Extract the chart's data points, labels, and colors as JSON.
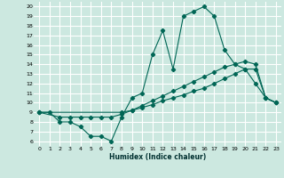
{
  "xlabel": "Humidex (Indice chaleur)",
  "xlim": [
    -0.5,
    23.5
  ],
  "ylim": [
    5.5,
    20.5
  ],
  "xticks": [
    0,
    1,
    2,
    3,
    4,
    5,
    6,
    7,
    8,
    9,
    10,
    11,
    12,
    13,
    14,
    15,
    16,
    17,
    18,
    19,
    20,
    21,
    22,
    23
  ],
  "yticks": [
    6,
    7,
    8,
    9,
    10,
    11,
    12,
    13,
    14,
    15,
    16,
    17,
    18,
    19,
    20
  ],
  "background_color": "#cce8e0",
  "grid_color": "#ffffff",
  "line_color": "#006655",
  "line1_x": [
    0,
    1,
    2,
    3,
    4,
    5,
    6,
    7,
    8,
    9,
    10,
    11,
    12,
    13,
    14,
    15,
    16,
    17,
    18,
    19,
    20,
    21,
    22,
    23
  ],
  "line1_y": [
    9,
    9,
    8,
    8,
    7.5,
    6.5,
    6.5,
    6,
    8.5,
    10.5,
    11,
    15,
    17.5,
    13.5,
    19,
    19.5,
    20,
    19,
    15.5,
    14,
    13.5,
    12,
    10.5,
    10
  ],
  "line2_x": [
    0,
    2,
    3,
    4,
    5,
    6,
    7,
    8,
    9,
    10,
    11,
    12,
    13,
    14,
    15,
    16,
    17,
    18,
    19,
    20,
    21,
    22,
    23
  ],
  "line2_y": [
    9,
    8.5,
    8.5,
    8.5,
    8.5,
    8.5,
    8.5,
    8.8,
    9.2,
    9.7,
    10.2,
    10.7,
    11.2,
    11.7,
    12.2,
    12.7,
    13.2,
    13.7,
    14.0,
    14.3,
    14.0,
    10.5,
    10
  ],
  "line3_x": [
    0,
    8,
    9,
    10,
    11,
    12,
    13,
    14,
    15,
    16,
    17,
    18,
    19,
    20,
    21,
    22,
    23
  ],
  "line3_y": [
    9,
    9.0,
    9.2,
    9.5,
    9.8,
    10.2,
    10.5,
    10.8,
    11.2,
    11.5,
    12.0,
    12.5,
    13.0,
    13.5,
    13.5,
    10.5,
    10
  ]
}
